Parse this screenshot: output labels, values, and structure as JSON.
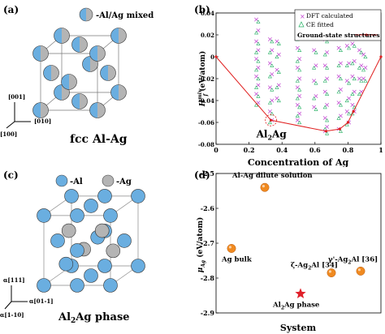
{
  "panels": {
    "a": {
      "label": "(a)",
      "legend_text": "-Al/Ag mixed",
      "caption": "fcc Al-Ag",
      "axis_001": "[001]",
      "axis_010": "[010]",
      "axis_100": "[100]"
    },
    "c": {
      "label": "(c)",
      "legend_al": "-Al",
      "legend_ag": "-Ag",
      "caption_pre": "Al",
      "caption_sub": "2",
      "caption_post": "Ag phase",
      "axis_111": "α[111]",
      "axis_01m1": "α[01-1]",
      "axis_1m10": "α[1-10]"
    },
    "b": {
      "label": "(b)"
    },
    "d": {
      "label": "(d)"
    }
  },
  "colors": {
    "al": "#6aaee0",
    "ag": "#b4b4b4",
    "dft": "#c040d0",
    "ce": "#20b060",
    "ground": "#e02020",
    "orange": "#f08a20",
    "star": "#e0202a"
  },
  "chart_data": [
    {
      "id": "b",
      "type": "scatter",
      "xlabel": "Concentration of Ag",
      "ylabel_main": "H",
      "ylabel_sup": "mix",
      "ylabel_sub": "f",
      "ylabel_unit": " (eV/atom)",
      "xlim": [
        0,
        1
      ],
      "ylim": [
        -0.08,
        0.04
      ],
      "xticks": [
        0,
        0.2,
        0.4,
        0.6,
        0.8,
        1
      ],
      "yticks": [
        -0.08,
        -0.06,
        -0.04,
        -0.02,
        0,
        0.02,
        0.04
      ],
      "xticklabels": [
        "0",
        "0.2",
        "0.4",
        "0.6",
        "0.8",
        "1"
      ],
      "yticklabels": [
        "-0.08",
        "-0.06",
        "-0.04",
        "-0.02",
        "0",
        "0.02",
        "0.04"
      ],
      "legend": {
        "position": "top-right",
        "entries": [
          "DFT calculated",
          "CE fitted",
          "Ground-state structures"
        ]
      },
      "annotation": {
        "pre": "Al",
        "sub": "2",
        "post": "Ag",
        "x": 0.333,
        "y": -0.058
      },
      "ground_state": {
        "x": [
          0,
          0.333,
          0.667,
          0.75,
          0.8,
          0.833,
          1
        ],
        "y": [
          0,
          -0.058,
          -0.068,
          -0.066,
          -0.06,
          -0.05,
          0
        ]
      },
      "dft_columns": [
        {
          "x": 0.25,
          "y": [
            0.034,
            0.024,
            0.014,
            0.006,
            -0.002,
            -0.01,
            -0.018,
            -0.026,
            -0.034,
            -0.042
          ]
        },
        {
          "x": 0.333,
          "y": [
            0.016,
            0.006,
            -0.006,
            -0.016,
            -0.028,
            -0.04,
            -0.05,
            -0.058
          ]
        },
        {
          "x": 0.375,
          "y": [
            0.014,
            0.002,
            -0.012,
            -0.026,
            -0.038
          ]
        },
        {
          "x": 0.5,
          "y": [
            0.028,
            0.018,
            0.008,
            -0.002,
            -0.01,
            -0.02,
            -0.028,
            -0.036,
            -0.044,
            -0.052,
            -0.058
          ]
        },
        {
          "x": 0.6,
          "y": [
            0.006,
            -0.008,
            -0.022,
            -0.036,
            -0.046
          ]
        },
        {
          "x": 0.667,
          "y": [
            0.016,
            0.004,
            -0.008,
            -0.02,
            -0.032,
            -0.044,
            -0.056,
            -0.064,
            -0.068
          ]
        },
        {
          "x": 0.75,
          "y": [
            0.034,
            0.02,
            0.008,
            -0.006,
            -0.018,
            -0.03,
            -0.042,
            -0.054,
            -0.066
          ]
        },
        {
          "x": 0.8,
          "y": [
            0.01,
            -0.006,
            -0.022,
            -0.038,
            -0.05,
            -0.06
          ]
        },
        {
          "x": 0.833,
          "y": [
            0.012,
            -0.004,
            -0.018,
            -0.032,
            -0.044,
            -0.05
          ]
        },
        {
          "x": 0.875,
          "y": [
            0.006,
            -0.008,
            -0.02,
            -0.032
          ]
        },
        {
          "x": 0.9,
          "y": [
            0.002,
            -0.01,
            -0.02
          ]
        }
      ]
    },
    {
      "id": "d",
      "type": "scatter",
      "xlabel": "System",
      "ylabel_main": "μ",
      "ylabel_sub": "Ag",
      "ylabel_unit": " (eV/atom)",
      "ylim": [
        -2.9,
        -2.5
      ],
      "yticks": [
        -2.9,
        -2.8,
        -2.7,
        -2.6,
        -2.5
      ],
      "yticklabels": [
        "-2.9",
        "-2.8",
        "-2.7",
        "-2.6",
        "-2.5"
      ],
      "points": [
        {
          "x": 1,
          "y": -2.715,
          "marker": "circle",
          "label": "Ag bulk"
        },
        {
          "x": 2,
          "y": -2.54,
          "marker": "circle",
          "label": "Al-Ag dilute solution"
        },
        {
          "x": 3,
          "y": -2.845,
          "marker": "star",
          "label_parts": [
            "Al",
            "2",
            "Ag phase"
          ]
        },
        {
          "x": 4,
          "y": -2.785,
          "marker": "circle",
          "label_parts": [
            "ζ-Ag",
            "2",
            "Al [34]"
          ]
        },
        {
          "x": 5,
          "y": -2.78,
          "marker": "circle",
          "label_parts": [
            "γ'-Ag",
            "2",
            "Al [36]"
          ]
        }
      ]
    }
  ]
}
